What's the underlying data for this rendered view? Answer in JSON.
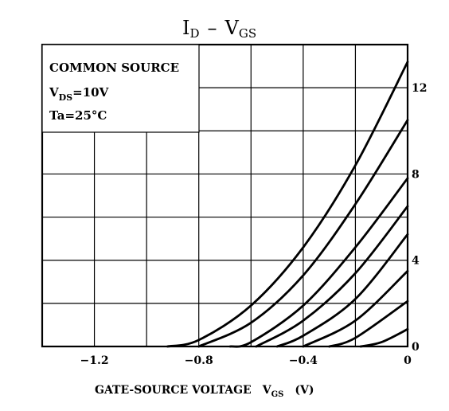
{
  "chart_data": {
    "type": "line",
    "title": {
      "main_1": "I",
      "sub_1": "D",
      "dash": "–",
      "main_2": "V",
      "sub_2": "GS"
    },
    "conditions": {
      "line1": "COMMON SOURCE",
      "line2_prefix": "V",
      "line2_sub": "DS",
      "line2_suffix": "=10V",
      "line3": "Ta=25°C"
    },
    "xlabel": {
      "text": "GATE-SOURCE VOLTAGE",
      "symbol": "V",
      "symbol_sub": "GS",
      "unit": "(V)"
    },
    "ylabel": "",
    "xlim": [
      -1.4,
      0
    ],
    "ylim": [
      0,
      14
    ],
    "x_ticks": [
      {
        "value": -1.2,
        "label": "−1.2"
      },
      {
        "value": -0.8,
        "label": "−0.8"
      },
      {
        "value": -0.4,
        "label": "−0.4"
      },
      {
        "value": 0,
        "label": "0"
      }
    ],
    "y_ticks": [
      {
        "value": 0,
        "label": "0"
      },
      {
        "value": 4,
        "label": "4"
      },
      {
        "value": 8,
        "label": "8"
      },
      {
        "value": 12,
        "label": "12"
      }
    ],
    "grid": true,
    "x_grid_values": [
      -1.2,
      -1.0,
      -0.8,
      -0.6,
      -0.4,
      -0.2
    ],
    "y_grid_values": [
      2,
      4,
      6,
      8,
      10,
      12
    ],
    "series": [
      {
        "x": [
          -0.92,
          -0.8,
          -0.6,
          -0.4,
          -0.2,
          0
        ],
        "y": [
          0,
          0.3,
          1.9,
          4.6,
          8.4,
          13.2
        ]
      },
      {
        "x": [
          -0.8,
          -0.6,
          -0.4,
          -0.2,
          0
        ],
        "y": [
          0,
          1.1,
          3.3,
          6.6,
          10.5
        ]
      },
      {
        "x": [
          -0.68,
          -0.6,
          -0.4,
          -0.2,
          0
        ],
        "y": [
          0,
          0.2,
          1.9,
          4.6,
          7.8
        ]
      },
      {
        "x": [
          -0.58,
          -0.4,
          -0.2,
          0
        ],
        "y": [
          0,
          1.2,
          3.4,
          6.5
        ]
      },
      {
        "x": [
          -0.5,
          -0.4,
          -0.2,
          0
        ],
        "y": [
          0,
          0.5,
          2.2,
          5.2
        ]
      },
      {
        "x": [
          -0.4,
          -0.2,
          0
        ],
        "y": [
          0,
          1.2,
          3.5
        ]
      },
      {
        "x": [
          -0.3,
          -0.2,
          0
        ],
        "y": [
          0,
          0.4,
          2.1
        ]
      },
      {
        "x": [
          -0.18,
          -0.1,
          0
        ],
        "y": [
          0,
          0.2,
          0.8
        ]
      }
    ]
  }
}
